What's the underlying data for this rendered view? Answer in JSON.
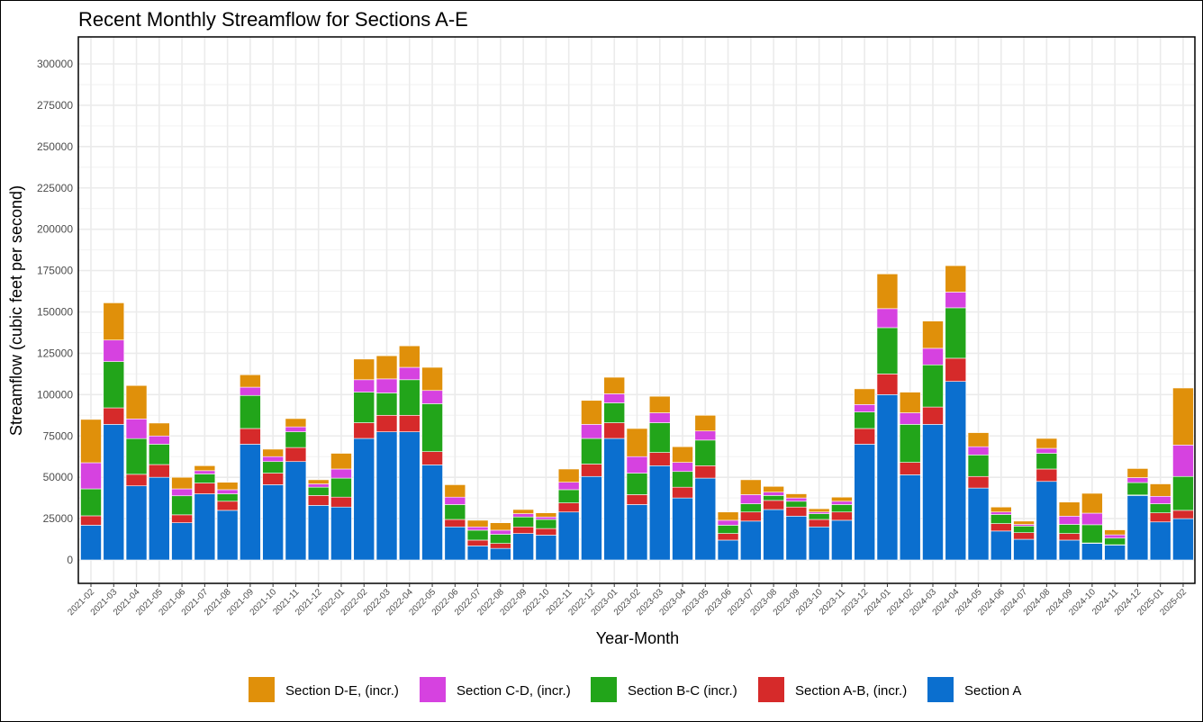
{
  "chart_data": {
    "type": "bar",
    "stacked": true,
    "title": "Recent Monthly Streamflow for Sections A-E",
    "xlabel": "Year-Month",
    "ylabel": "Streamflow (cubic feet per second)",
    "ylim": [
      0,
      300000
    ],
    "yticks": [
      0,
      25000,
      50000,
      75000,
      100000,
      125000,
      150000,
      175000,
      200000,
      225000,
      250000,
      275000,
      300000
    ],
    "grid": true,
    "legend_position": "bottom",
    "categories": [
      "2021-02",
      "2021-03",
      "2021-04",
      "2021-05",
      "2021-06",
      "2021-07",
      "2021-08",
      "2021-09",
      "2021-10",
      "2021-11",
      "2021-12",
      "2022-01",
      "2022-02",
      "2022-03",
      "2022-04",
      "2022-05",
      "2022-06",
      "2022-07",
      "2022-08",
      "2022-09",
      "2022-10",
      "2022-11",
      "2022-12",
      "2023-01",
      "2023-02",
      "2023-03",
      "2023-04",
      "2023-05",
      "2023-06",
      "2023-07",
      "2023-08",
      "2023-09",
      "2023-10",
      "2023-11",
      "2023-12",
      "2024-01",
      "2024-02",
      "2024-03",
      "2024-04",
      "2024-05",
      "2024-06",
      "2024-07",
      "2024-08",
      "2024-09",
      "2024-10",
      "2024-11",
      "2024-12",
      "2025-01",
      "2025-02"
    ],
    "series": [
      {
        "name": "Section A",
        "color": "#0b6fcf",
        "values": [
          21000,
          82000,
          44800,
          50000,
          22500,
          40000,
          30000,
          70000,
          45500,
          59500,
          33000,
          32000,
          73500,
          77500,
          77500,
          57500,
          20000,
          8500,
          7000,
          16000,
          15000,
          29000,
          50500,
          73500,
          33500,
          57000,
          37500,
          49500,
          12000,
          23500,
          30500,
          26500,
          20000,
          24000,
          70000,
          100000,
          51500,
          82000,
          108000,
          43500,
          17500,
          12500,
          47500,
          12000,
          10000,
          9000,
          39000,
          23000,
          25000
        ]
      },
      {
        "name": "Section A-B, (incr.)",
        "color": "#d62a2a",
        "values": [
          5700,
          10000,
          7000,
          7700,
          4800,
          6500,
          5500,
          9500,
          7000,
          8500,
          6000,
          6000,
          9500,
          10000,
          10000,
          8000,
          4500,
          3500,
          3000,
          4000,
          4000,
          5500,
          7500,
          9500,
          6000,
          8000,
          6500,
          7500,
          4000,
          5500,
          5500,
          5500,
          4500,
          5000,
          9500,
          12500,
          7500,
          10500,
          14000,
          7000,
          4500,
          4000,
          7500,
          4000,
          300,
          200,
          300,
          5500,
          5000
        ]
      },
      {
        "name": "Section B-C (incr.)",
        "color": "#22a51a",
        "values": [
          16300,
          28000,
          21600,
          12300,
          11500,
          5500,
          4500,
          20000,
          7000,
          9500,
          5000,
          11500,
          18500,
          13500,
          21500,
          29000,
          9000,
          6000,
          5500,
          6000,
          5500,
          8000,
          15500,
          12000,
          13000,
          18000,
          9500,
          15500,
          5000,
          5000,
          3000,
          3500,
          3500,
          4500,
          10000,
          28000,
          23000,
          25500,
          30500,
          13000,
          5500,
          4000,
          9500,
          5500,
          11000,
          4000,
          7500,
          5500,
          20500
        ]
      },
      {
        "name": "Section C-D, (incr.)",
        "color": "#d642e0",
        "values": [
          15800,
          13000,
          11900,
          5000,
          4200,
          2000,
          2500,
          5000,
          3000,
          3000,
          2000,
          5500,
          7500,
          8500,
          7500,
          8000,
          4500,
          2000,
          2500,
          2000,
          1500,
          4500,
          8500,
          5500,
          10000,
          6000,
          5500,
          5500,
          3000,
          5500,
          2000,
          2000,
          1000,
          2000,
          4500,
          11500,
          7000,
          10000,
          9500,
          5000,
          1500,
          1000,
          3000,
          5000,
          7000,
          2000,
          3000,
          4500,
          19000
        ]
      },
      {
        "name": "Section D-E, (incr.)",
        "color": "#e0900a",
        "values": [
          26200,
          22500,
          20200,
          7800,
          7000,
          3000,
          4500,
          7500,
          4500,
          5000,
          2500,
          9500,
          12500,
          14000,
          13000,
          14000,
          7500,
          4000,
          4500,
          2500,
          2500,
          8000,
          14500,
          10000,
          17000,
          10000,
          9500,
          9500,
          5000,
          9000,
          3500,
          2500,
          2000,
          2500,
          9500,
          21000,
          12500,
          16500,
          16000,
          8500,
          3000,
          2000,
          6000,
          8500,
          12000,
          3000,
          5500,
          7500,
          34500
        ]
      }
    ],
    "legend_order": [
      "Section D-E, (incr.)",
      "Section C-D, (incr.)",
      "Section B-C (incr.)",
      "Section A-B, (incr.)",
      "Section A"
    ]
  }
}
